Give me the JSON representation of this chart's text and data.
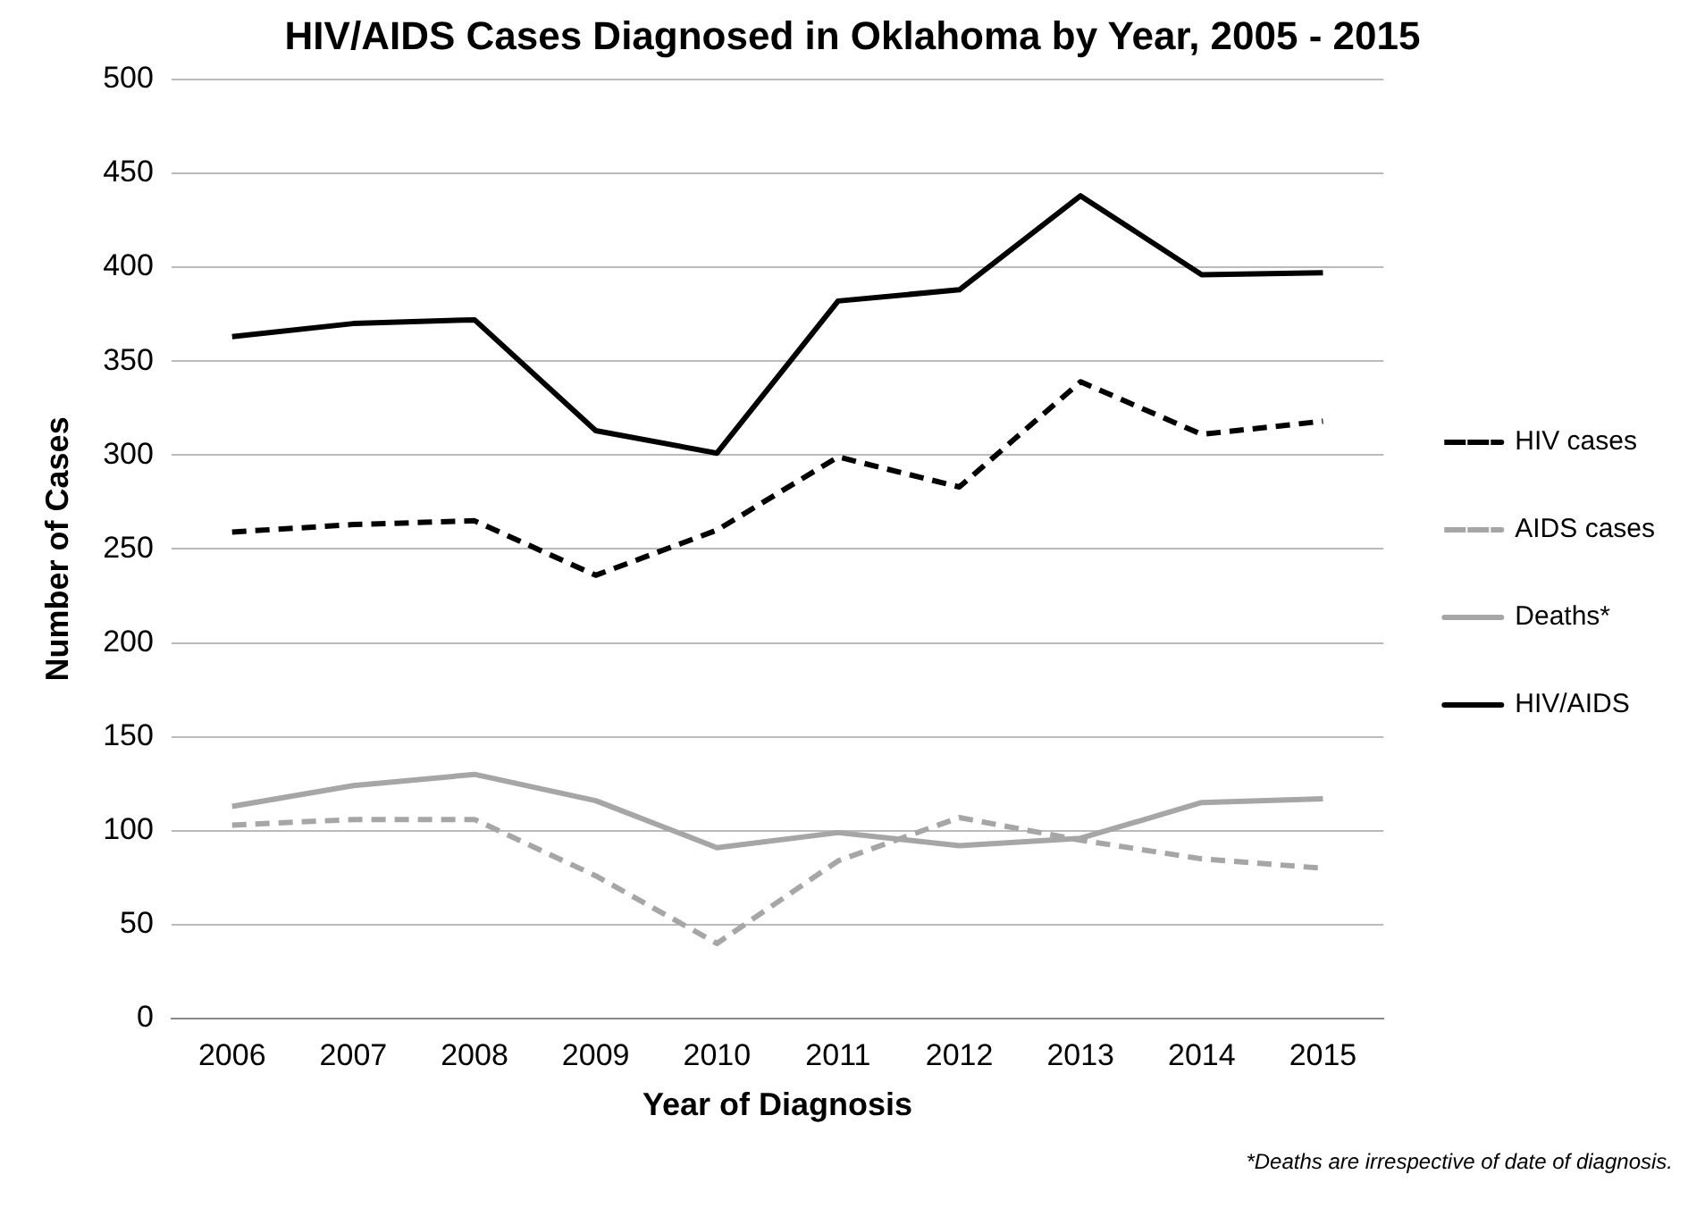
{
  "chart_data": {
    "type": "line",
    "title": "HIV/AIDS Cases Diagnosed in Oklahoma by Year, 2005 - 2015",
    "xlabel": "Year of Diagnosis",
    "ylabel": "Number of Cases",
    "categories": [
      "2006",
      "2007",
      "2008",
      "2009",
      "2010",
      "2011",
      "2012",
      "2013",
      "2014",
      "2015"
    ],
    "series": [
      {
        "name": "HIV cases",
        "color": "#000000",
        "line_style": "dashed",
        "values": [
          259,
          263,
          265,
          236,
          260,
          299,
          283,
          339,
          311,
          318
        ]
      },
      {
        "name": "AIDS cases",
        "color": "#a6a6a6",
        "line_style": "dashed",
        "values": [
          103,
          106,
          106,
          76,
          40,
          84,
          107,
          95,
          85,
          80
        ]
      },
      {
        "name": "Deaths*",
        "color": "#a6a6a6",
        "line_style": "solid",
        "values": [
          113,
          124,
          130,
          116,
          91,
          99,
          92,
          96,
          115,
          117
        ]
      },
      {
        "name": "HIV/AIDS",
        "color": "#000000",
        "line_style": "solid",
        "values": [
          363,
          370,
          372,
          313,
          301,
          382,
          388,
          438,
          396,
          397
        ]
      }
    ],
    "ylim": [
      0,
      500
    ],
    "yticks": [
      0,
      50,
      100,
      150,
      200,
      250,
      300,
      350,
      400,
      450,
      500
    ],
    "grid": "y",
    "legend": "right",
    "marker": "none",
    "annotations": [
      "*Deaths are irrespective of date of diagnosis."
    ]
  }
}
